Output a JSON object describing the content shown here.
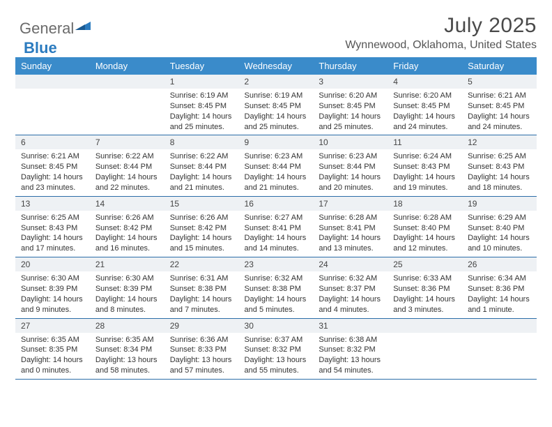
{
  "brand": {
    "general": "General",
    "blue": "Blue"
  },
  "title": "July 2025",
  "location": "Wynnewood, Oklahoma, United States",
  "header_bg": "#3a8bca",
  "header_fg": "#ffffff",
  "daynum_bg": "#eef1f4",
  "rule_color": "#2b6da8",
  "days": [
    "Sunday",
    "Monday",
    "Tuesday",
    "Wednesday",
    "Thursday",
    "Friday",
    "Saturday"
  ],
  "weeks": [
    {
      "nums": [
        "",
        "",
        "1",
        "2",
        "3",
        "4",
        "5"
      ],
      "cells": [
        {
          "sunrise": "",
          "sunset": "",
          "daylight1": "",
          "daylight2": ""
        },
        {
          "sunrise": "",
          "sunset": "",
          "daylight1": "",
          "daylight2": ""
        },
        {
          "sunrise": "Sunrise: 6:19 AM",
          "sunset": "Sunset: 8:45 PM",
          "daylight1": "Daylight: 14 hours",
          "daylight2": "and 25 minutes."
        },
        {
          "sunrise": "Sunrise: 6:19 AM",
          "sunset": "Sunset: 8:45 PM",
          "daylight1": "Daylight: 14 hours",
          "daylight2": "and 25 minutes."
        },
        {
          "sunrise": "Sunrise: 6:20 AM",
          "sunset": "Sunset: 8:45 PM",
          "daylight1": "Daylight: 14 hours",
          "daylight2": "and 25 minutes."
        },
        {
          "sunrise": "Sunrise: 6:20 AM",
          "sunset": "Sunset: 8:45 PM",
          "daylight1": "Daylight: 14 hours",
          "daylight2": "and 24 minutes."
        },
        {
          "sunrise": "Sunrise: 6:21 AM",
          "sunset": "Sunset: 8:45 PM",
          "daylight1": "Daylight: 14 hours",
          "daylight2": "and 24 minutes."
        }
      ]
    },
    {
      "nums": [
        "6",
        "7",
        "8",
        "9",
        "10",
        "11",
        "12"
      ],
      "cells": [
        {
          "sunrise": "Sunrise: 6:21 AM",
          "sunset": "Sunset: 8:45 PM",
          "daylight1": "Daylight: 14 hours",
          "daylight2": "and 23 minutes."
        },
        {
          "sunrise": "Sunrise: 6:22 AM",
          "sunset": "Sunset: 8:44 PM",
          "daylight1": "Daylight: 14 hours",
          "daylight2": "and 22 minutes."
        },
        {
          "sunrise": "Sunrise: 6:22 AM",
          "sunset": "Sunset: 8:44 PM",
          "daylight1": "Daylight: 14 hours",
          "daylight2": "and 21 minutes."
        },
        {
          "sunrise": "Sunrise: 6:23 AM",
          "sunset": "Sunset: 8:44 PM",
          "daylight1": "Daylight: 14 hours",
          "daylight2": "and 21 minutes."
        },
        {
          "sunrise": "Sunrise: 6:23 AM",
          "sunset": "Sunset: 8:44 PM",
          "daylight1": "Daylight: 14 hours",
          "daylight2": "and 20 minutes."
        },
        {
          "sunrise": "Sunrise: 6:24 AM",
          "sunset": "Sunset: 8:43 PM",
          "daylight1": "Daylight: 14 hours",
          "daylight2": "and 19 minutes."
        },
        {
          "sunrise": "Sunrise: 6:25 AM",
          "sunset": "Sunset: 8:43 PM",
          "daylight1": "Daylight: 14 hours",
          "daylight2": "and 18 minutes."
        }
      ]
    },
    {
      "nums": [
        "13",
        "14",
        "15",
        "16",
        "17",
        "18",
        "19"
      ],
      "cells": [
        {
          "sunrise": "Sunrise: 6:25 AM",
          "sunset": "Sunset: 8:43 PM",
          "daylight1": "Daylight: 14 hours",
          "daylight2": "and 17 minutes."
        },
        {
          "sunrise": "Sunrise: 6:26 AM",
          "sunset": "Sunset: 8:42 PM",
          "daylight1": "Daylight: 14 hours",
          "daylight2": "and 16 minutes."
        },
        {
          "sunrise": "Sunrise: 6:26 AM",
          "sunset": "Sunset: 8:42 PM",
          "daylight1": "Daylight: 14 hours",
          "daylight2": "and 15 minutes."
        },
        {
          "sunrise": "Sunrise: 6:27 AM",
          "sunset": "Sunset: 8:41 PM",
          "daylight1": "Daylight: 14 hours",
          "daylight2": "and 14 minutes."
        },
        {
          "sunrise": "Sunrise: 6:28 AM",
          "sunset": "Sunset: 8:41 PM",
          "daylight1": "Daylight: 14 hours",
          "daylight2": "and 13 minutes."
        },
        {
          "sunrise": "Sunrise: 6:28 AM",
          "sunset": "Sunset: 8:40 PM",
          "daylight1": "Daylight: 14 hours",
          "daylight2": "and 12 minutes."
        },
        {
          "sunrise": "Sunrise: 6:29 AM",
          "sunset": "Sunset: 8:40 PM",
          "daylight1": "Daylight: 14 hours",
          "daylight2": "and 10 minutes."
        }
      ]
    },
    {
      "nums": [
        "20",
        "21",
        "22",
        "23",
        "24",
        "25",
        "26"
      ],
      "cells": [
        {
          "sunrise": "Sunrise: 6:30 AM",
          "sunset": "Sunset: 8:39 PM",
          "daylight1": "Daylight: 14 hours",
          "daylight2": "and 9 minutes."
        },
        {
          "sunrise": "Sunrise: 6:30 AM",
          "sunset": "Sunset: 8:39 PM",
          "daylight1": "Daylight: 14 hours",
          "daylight2": "and 8 minutes."
        },
        {
          "sunrise": "Sunrise: 6:31 AM",
          "sunset": "Sunset: 8:38 PM",
          "daylight1": "Daylight: 14 hours",
          "daylight2": "and 7 minutes."
        },
        {
          "sunrise": "Sunrise: 6:32 AM",
          "sunset": "Sunset: 8:38 PM",
          "daylight1": "Daylight: 14 hours",
          "daylight2": "and 5 minutes."
        },
        {
          "sunrise": "Sunrise: 6:32 AM",
          "sunset": "Sunset: 8:37 PM",
          "daylight1": "Daylight: 14 hours",
          "daylight2": "and 4 minutes."
        },
        {
          "sunrise": "Sunrise: 6:33 AM",
          "sunset": "Sunset: 8:36 PM",
          "daylight1": "Daylight: 14 hours",
          "daylight2": "and 3 minutes."
        },
        {
          "sunrise": "Sunrise: 6:34 AM",
          "sunset": "Sunset: 8:36 PM",
          "daylight1": "Daylight: 14 hours",
          "daylight2": "and 1 minute."
        }
      ]
    },
    {
      "nums": [
        "27",
        "28",
        "29",
        "30",
        "31",
        "",
        ""
      ],
      "cells": [
        {
          "sunrise": "Sunrise: 6:35 AM",
          "sunset": "Sunset: 8:35 PM",
          "daylight1": "Daylight: 14 hours",
          "daylight2": "and 0 minutes."
        },
        {
          "sunrise": "Sunrise: 6:35 AM",
          "sunset": "Sunset: 8:34 PM",
          "daylight1": "Daylight: 13 hours",
          "daylight2": "and 58 minutes."
        },
        {
          "sunrise": "Sunrise: 6:36 AM",
          "sunset": "Sunset: 8:33 PM",
          "daylight1": "Daylight: 13 hours",
          "daylight2": "and 57 minutes."
        },
        {
          "sunrise": "Sunrise: 6:37 AM",
          "sunset": "Sunset: 8:32 PM",
          "daylight1": "Daylight: 13 hours",
          "daylight2": "and 55 minutes."
        },
        {
          "sunrise": "Sunrise: 6:38 AM",
          "sunset": "Sunset: 8:32 PM",
          "daylight1": "Daylight: 13 hours",
          "daylight2": "and 54 minutes."
        },
        {
          "sunrise": "",
          "sunset": "",
          "daylight1": "",
          "daylight2": ""
        },
        {
          "sunrise": "",
          "sunset": "",
          "daylight1": "",
          "daylight2": ""
        }
      ]
    }
  ]
}
